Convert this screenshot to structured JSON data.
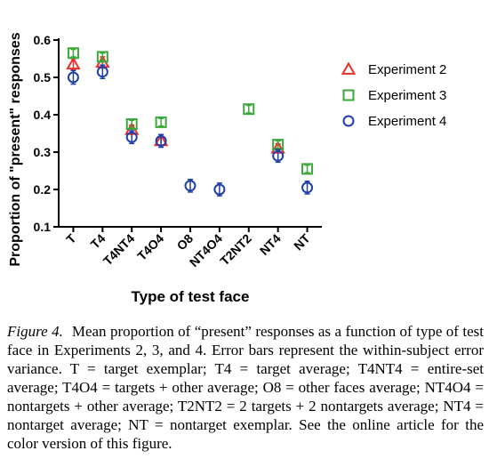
{
  "chart_data": {
    "type": "scatter",
    "title": "",
    "xlabel": "Type of test face",
    "ylabel": "Proportion of \"present\" responses",
    "ylim": [
      0.1,
      0.6
    ],
    "yticks": [
      "0.1",
      "0.2",
      "0.3",
      "0.4",
      "0.5",
      "0.6"
    ],
    "categories": [
      "T",
      "T4",
      "T4NT4",
      "T4O4",
      "O8",
      "NT4O4",
      "T2NT2",
      "NT4",
      "NT"
    ],
    "legend_position": "right",
    "grid": false,
    "error_bars": "within-subject error variance",
    "series": [
      {
        "name": "Experiment 2",
        "marker": "triangle",
        "color": "#e8302a",
        "values": [
          0.535,
          0.54,
          0.36,
          0.33,
          null,
          null,
          null,
          0.31,
          null
        ],
        "errors": [
          0.015,
          0.015,
          0.012,
          0.012,
          null,
          null,
          null,
          0.012,
          null
        ]
      },
      {
        "name": "Experiment 3",
        "marker": "square",
        "color": "#3aa83a",
        "values": [
          0.565,
          0.555,
          0.375,
          0.38,
          null,
          null,
          0.415,
          0.32,
          0.255
        ],
        "errors": [
          0.01,
          0.01,
          0.01,
          0.01,
          null,
          null,
          0.01,
          0.01,
          0.01
        ]
      },
      {
        "name": "Experiment 4",
        "marker": "circle",
        "color": "#1f3fa8",
        "values": [
          0.5,
          0.515,
          0.34,
          0.33,
          0.21,
          0.2,
          null,
          0.29,
          0.205
        ],
        "errors": [
          0.018,
          0.018,
          0.017,
          0.017,
          0.017,
          0.017,
          null,
          0.017,
          0.017
        ]
      }
    ]
  },
  "caption": {
    "label": "Figure 4.",
    "text": "Mean proportion of “present” responses as a function of type of test face in Experiments 2, 3, and 4. Error bars represent the within-subject error variance. T = target exemplar; T4 = target average; T4NT4 = entire-set average; T4O4 = targets + other average; O8 = other faces average; NT4O4 = nontargets + other average; T2NT2 = 2 targets + 2 nontargets average; NT4 = nontarget average; NT = nontarget exemplar. See the online article for the color version of this figure."
  }
}
